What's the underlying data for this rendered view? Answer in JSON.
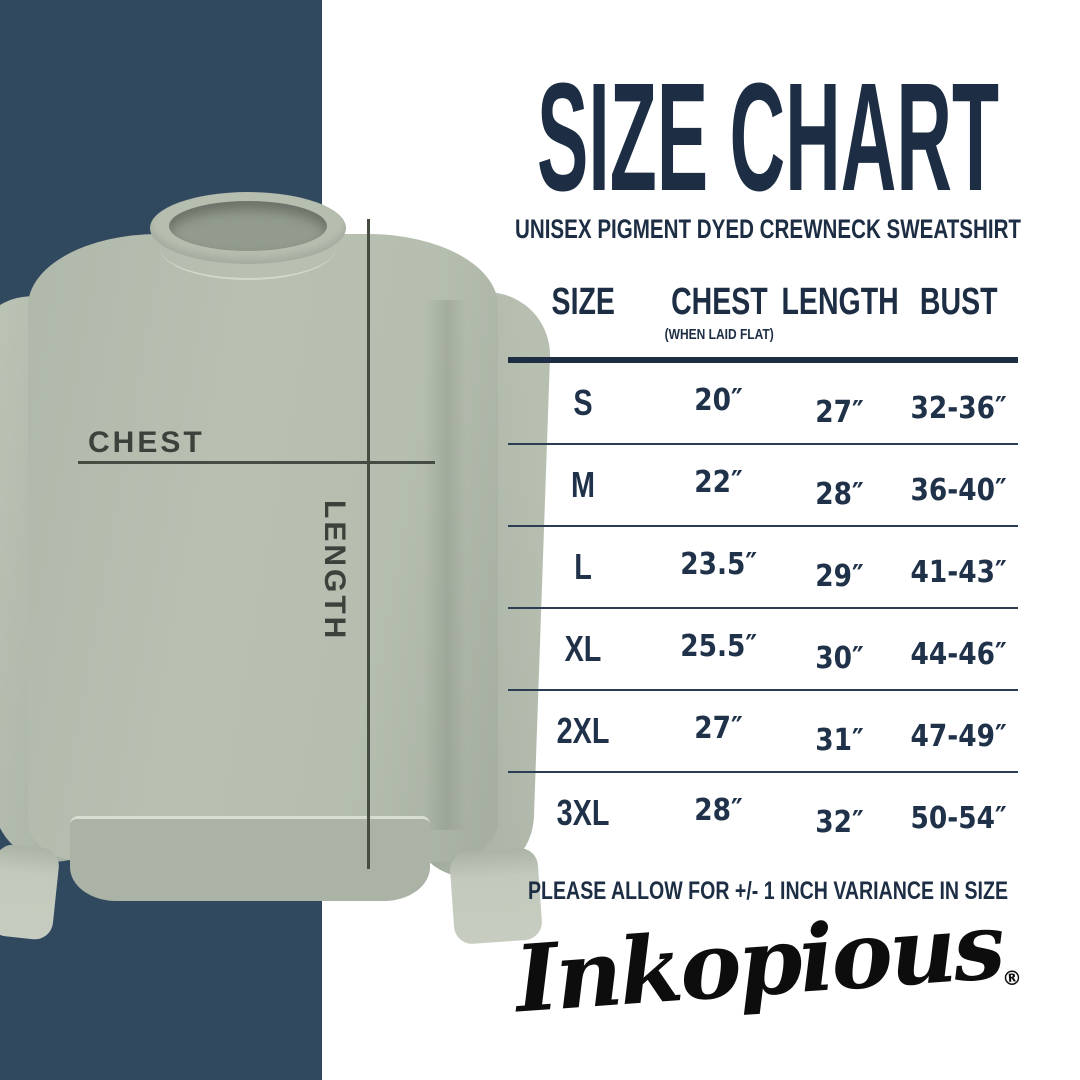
{
  "colors": {
    "navy_band": "#31495E",
    "ink_navy": "#1D2E44",
    "table_ink": "#203249",
    "sweatshirt_sage": "#B5BEAF",
    "logo_black": "#0D0D0D"
  },
  "hero": {
    "chest_label": "CHEST",
    "length_label": "LENGTH"
  },
  "header": {
    "title": "SIZE CHART",
    "subtitle": "UNISEX PIGMENT DYED CREWNECK SWEATSHIRT"
  },
  "table": {
    "columns": [
      "SIZE",
      "CHEST",
      "LENGTH",
      "BUST"
    ],
    "chest_note": "(WHEN LAID FLAT)",
    "rows": [
      {
        "size": "S",
        "chest": "20″",
        "length": "27″",
        "bust": "32-36″"
      },
      {
        "size": "M",
        "chest": "22″",
        "length": "28″",
        "bust": "36-40″"
      },
      {
        "size": "L",
        "chest": "23.5″",
        "length": "29″",
        "bust": "41-43″"
      },
      {
        "size": "XL",
        "chest": "25.5″",
        "length": "30″",
        "bust": "44-46″"
      },
      {
        "size": "2XL",
        "chest": "27″",
        "length": "31″",
        "bust": "47-49″"
      },
      {
        "size": "3XL",
        "chest": "28″",
        "length": "32″",
        "bust": "50-54″"
      }
    ]
  },
  "note": "PLEASE ALLOW FOR +/- 1 INCH VARIANCE IN SIZE",
  "brand": {
    "name": "Inkopious",
    "registered": "®"
  }
}
